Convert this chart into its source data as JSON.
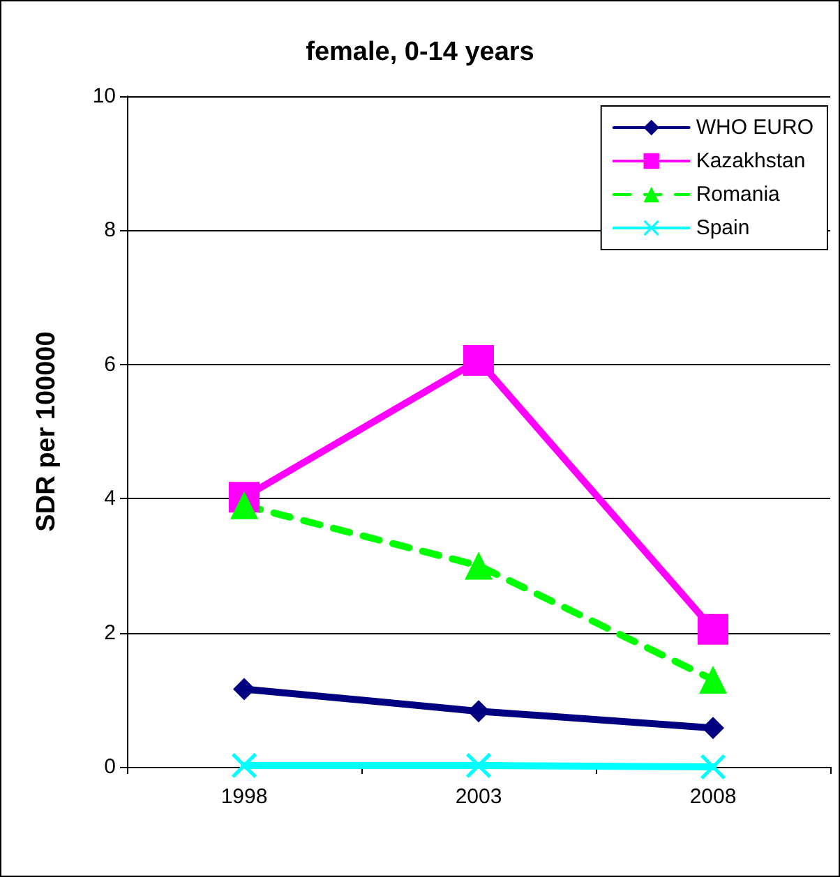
{
  "chart_data": {
    "type": "line",
    "title": "female, 0-14 years",
    "ylabel": "SDR per 100000",
    "categories": [
      "1998",
      "2003",
      "2008"
    ],
    "series": [
      {
        "name": "WHO EURO",
        "color": "#000080",
        "values": [
          1.16,
          0.83,
          0.58
        ],
        "marker": "diamond",
        "line_style": "solid"
      },
      {
        "name": "Kazakhstan",
        "color": "#ff00ff",
        "values": [
          4.02,
          6.06,
          2.05
        ],
        "marker": "square",
        "line_style": "solid"
      },
      {
        "name": "Romania",
        "color": "#00ff00",
        "values": [
          3.9,
          3.0,
          1.3
        ],
        "marker": "triangle",
        "line_style": "dashed"
      },
      {
        "name": "Spain",
        "color": "#00ffff",
        "values": [
          0.02,
          0.02,
          0.0
        ],
        "marker": "cross",
        "line_style": "solid"
      }
    ],
    "ylim": [
      0,
      10
    ],
    "yticks": [
      0,
      2,
      4,
      6,
      8,
      10
    ],
    "grid": "y",
    "legend": "top right"
  }
}
